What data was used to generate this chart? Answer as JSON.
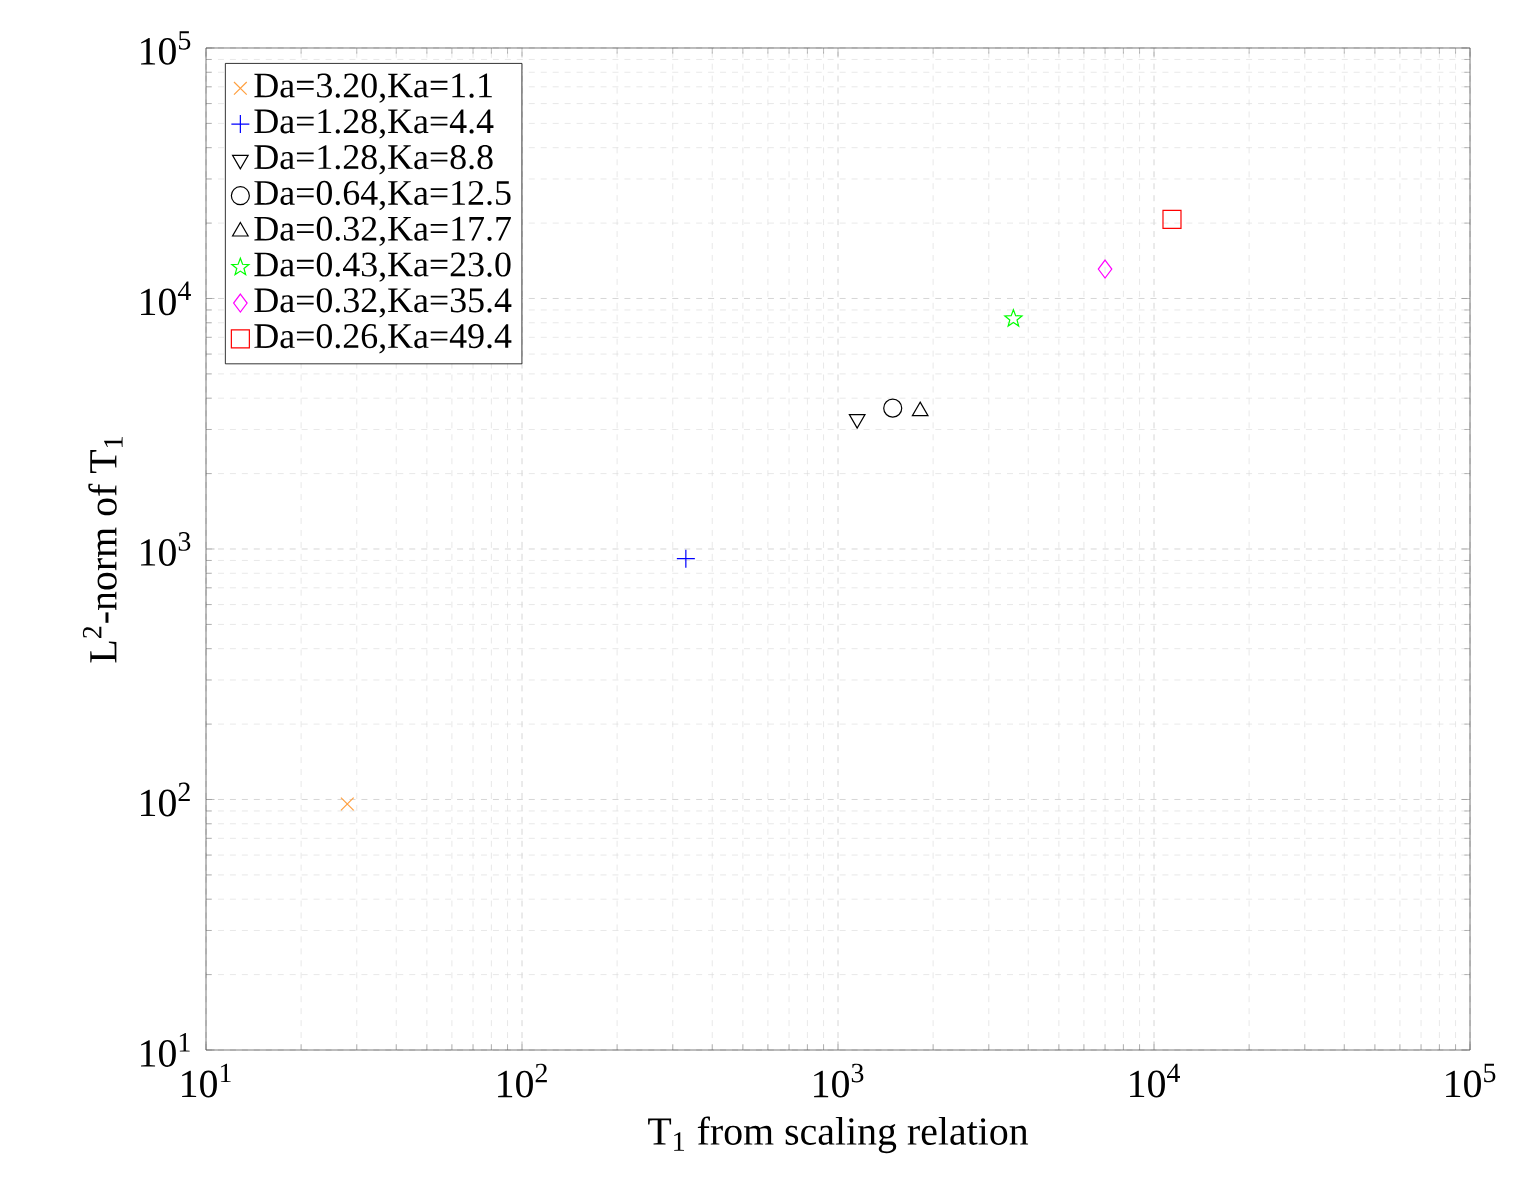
{
  "chart_data": {
    "type": "scatter",
    "xlabel": "T$_{1}$ from scaling relation",
    "ylabel": "L$^{2}$-norm of T$_{1}$",
    "log": "xy",
    "grid": true,
    "legend": "top left",
    "xlim": [
      10,
      100000
    ],
    "ylim": [
      10,
      100000
    ],
    "xticks": [
      {
        "value": 10,
        "label": "10$^{1}$"
      },
      {
        "value": 100,
        "label": "10$^{2}$"
      },
      {
        "value": 1000,
        "label": "10$^{3}$"
      },
      {
        "value": 10000,
        "label": "10$^{4}$"
      },
      {
        "value": 100000,
        "label": "10$^{5}$"
      }
    ],
    "yticks": [
      {
        "value": 10,
        "label": "10$^{1}$"
      },
      {
        "value": 100,
        "label": "10$^{2}$"
      },
      {
        "value": 1000,
        "label": "10$^{3}$"
      },
      {
        "value": 10000,
        "label": "10$^{4}$"
      },
      {
        "value": 100000,
        "label": "10$^{5}$"
      }
    ],
    "series": [
      {
        "name": "Da=3.20,Ka=1.1",
        "color": "#ffa040",
        "marker": "cross",
        "x": [
          28
        ],
        "values": [
          96
        ]
      },
      {
        "name": "Da=1.28,Ka=4.4",
        "color": "#0000ff",
        "marker": "plus",
        "x": [
          330
        ],
        "values": [
          915
        ]
      },
      {
        "name": "Da=1.28,Ka=8.8",
        "color": "#000000",
        "marker": "triangle-down",
        "x": [
          1150
        ],
        "values": [
          3300
        ]
      },
      {
        "name": "Da=0.64,Ka=12.5",
        "color": "#000000",
        "marker": "circle",
        "x": [
          1490
        ],
        "values": [
          3650
        ]
      },
      {
        "name": "Da=0.32,Ka=17.7",
        "color": "#000000",
        "marker": "triangle",
        "x": [
          1820
        ],
        "values": [
          3550
        ]
      },
      {
        "name": "Da=0.43,Ka=23.0",
        "color": "#00ff00",
        "marker": "star",
        "x": [
          3590
        ],
        "values": [
          8300
        ]
      },
      {
        "name": "Da=0.32,Ka=35.4",
        "color": "#ff00ff",
        "marker": "diamond",
        "x": [
          7000
        ],
        "values": [
          13100
        ]
      },
      {
        "name": "Da=0.26,Ka=49.4",
        "color": "#ff0000",
        "marker": "square",
        "x": [
          11400
        ],
        "values": [
          20700
        ]
      }
    ]
  }
}
